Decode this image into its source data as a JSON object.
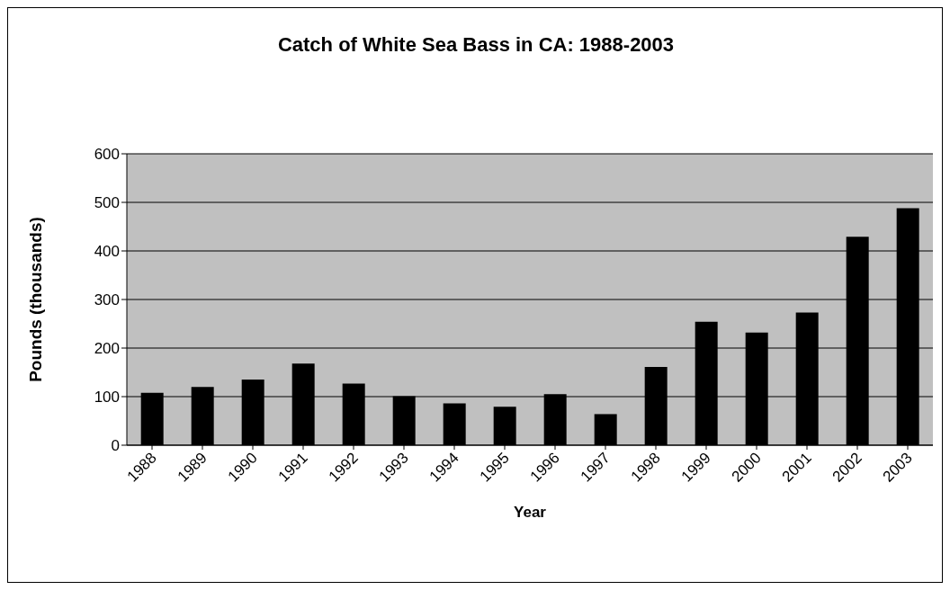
{
  "chart_data": {
    "type": "bar",
    "title": "Catch of White Sea Bass in CA:  1988-2003",
    "xlabel": "Year",
    "ylabel": "Pounds (thousands)",
    "categories": [
      "1988",
      "1989",
      "1990",
      "1991",
      "1992",
      "1993",
      "1994",
      "1995",
      "1996",
      "1997",
      "1998",
      "1999",
      "2000",
      "2001",
      "2002",
      "2003"
    ],
    "values": [
      108,
      120,
      135,
      168,
      127,
      101,
      86,
      79,
      105,
      64,
      161,
      254,
      232,
      273,
      429,
      488
    ],
    "color": "#000000",
    "ylim": [
      0,
      600
    ],
    "yticks": [
      0,
      100,
      200,
      300,
      400,
      500,
      600
    ],
    "grid": "y"
  }
}
